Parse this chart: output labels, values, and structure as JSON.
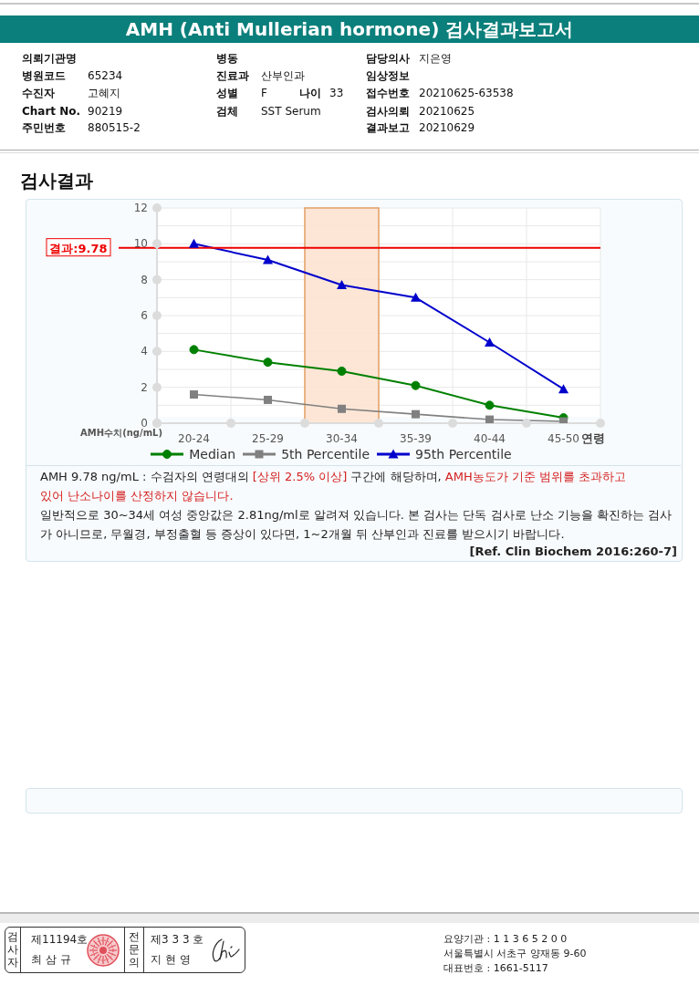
{
  "chart_data": {
    "type": "line",
    "title": "AMH (Anti Mullerian hormone) 검사결과보고서",
    "subtitle": "검사결과",
    "xlabel": "연령",
    "ylabel": "AMH수치(ng/mL)",
    "categories": [
      "20-24",
      "25-29",
      "30-34",
      "35-39",
      "40-44",
      "45-50"
    ],
    "series": [
      {
        "name": "Median",
        "color": "#008000",
        "marker": "circle",
        "values": [
          4.1,
          3.4,
          2.9,
          2.1,
          1.0,
          0.3
        ]
      },
      {
        "name": "5th Percentile",
        "color": "#808080",
        "marker": "square",
        "values": [
          1.6,
          1.3,
          0.8,
          0.5,
          0.2,
          0.1
        ]
      },
      {
        "name": "95th Percentile",
        "color": "#0000cc",
        "marker": "triangle",
        "values": [
          10.0,
          9.1,
          7.7,
          7.0,
          4.5,
          1.9
        ]
      }
    ],
    "ylim": [
      0,
      12
    ],
    "yticks": [
      0,
      {
        "value": 1,
        "label": null
      },
      2,
      {
        "value": 3,
        "label": null
      },
      4,
      {
        "value": 5,
        "label": null
      },
      6,
      {
        "value": 7,
        "label": null
      },
      8,
      {
        "value": 9,
        "label": null
      },
      10,
      {
        "value": 11,
        "label": null
      },
      12
    ],
    "grid": true,
    "legend": "bottom",
    "line_style": "solid",
    "ref_lines": [
      {
        "axis": "y",
        "value": 9.78,
        "label": "결과:9.78",
        "color": "#ee0000"
      }
    ],
    "bands": [
      {
        "axis": "x",
        "from": "30-34",
        "to": "30-34",
        "color": "#fde3d2"
      }
    ],
    "annotations": [
      "의뢰기관명",
      "병동",
      "담당의사",
      "지은영",
      "병원코드",
      "65234",
      "진료과",
      "산부인과",
      "임상정보",
      "수진자",
      "고혜지",
      "성별",
      "F",
      "나이",
      "33",
      "접수번호",
      "20210625-63538",
      "Chart No.",
      "90219",
      "검체",
      "SST Serum",
      "검사의뢰",
      "20210625",
      "주민번호",
      "880515-2",
      "결과보고",
      "20210629",
      "AMH  9.78 ng/mL : 수검자의 연령대의",
      "[상위 2.5% 이상]",
      "구간에 해당하며,",
      "AMH농도가 기준 범위를 초과하고",
      "있어 난소나이를 산정하지 않습니다.",
      "일반적으로 30~34세 여성 중앙값은 2.81ng/ml로 알려져 있습니다. 본 검사는 단독 검사로 난소 기능을 확진하는 검사가 아니므로, 무월경, 부정출혈 등 증상이 있다면, 1~2개월 뒤 산부인과 진료를 받으시기 바랍니다.",
      "[Ref. Clin Biochem 2016:260-7]",
      "검사자",
      "제11194호",
      "최 삼 규",
      "전문의",
      "제3 3 3 호",
      "지 현 영",
      "요양기관 : 1 1 3 6 5 2 0 0",
      "서울특별시 서초구 양재동 9-60",
      "대표번호 : 1661-5117"
    ]
  }
}
